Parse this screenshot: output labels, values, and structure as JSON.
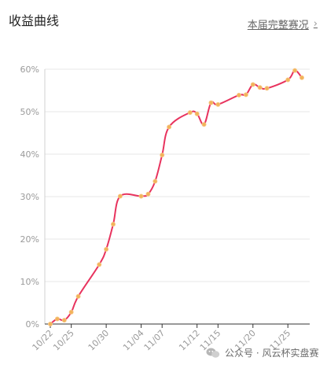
{
  "header": {
    "title": "收益曲线",
    "link_label": "本届完整赛况",
    "chevron_icon": "chevron-right-icon"
  },
  "colors": {
    "line": "#e8335e",
    "point": "#f2b35b",
    "grid": "#e7e7e7",
    "axis_text": "#9a9a9a"
  },
  "chart_data": {
    "type": "line",
    "title": "",
    "xlabel": "",
    "ylabel": "",
    "ylim": [
      0,
      60
    ],
    "yticks": [
      "0%",
      "10%",
      "20%",
      "30%",
      "40%",
      "50%",
      "60%"
    ],
    "xticks": [
      "10/22",
      "10/25",
      "10/30",
      "11/04",
      "11/07",
      "11/12",
      "11/15",
      "11/20",
      "11/25"
    ],
    "x": [
      "10/22",
      "10/23",
      "10/24",
      "10/25",
      "10/26",
      "10/29",
      "10/30",
      "10/31",
      "11/01",
      "11/04",
      "11/05",
      "11/06",
      "11/07",
      "11/08",
      "11/11",
      "11/12",
      "11/13",
      "11/14",
      "11/15",
      "11/18",
      "11/19",
      "11/20",
      "11/21",
      "11/22",
      "11/25",
      "11/26",
      "11/27"
    ],
    "series": [
      {
        "name": "",
        "values": [
          0.0,
          1.2,
          0.9,
          2.8,
          6.5,
          14.0,
          17.6,
          23.5,
          30.1,
          30.1,
          30.6,
          33.6,
          39.8,
          46.4,
          49.8,
          49.5,
          47.0,
          52.1,
          51.7,
          53.9,
          54.0,
          56.4,
          55.7,
          55.5,
          57.5,
          59.7,
          58.0
        ]
      }
    ]
  },
  "watermark": {
    "text": "公众号 · 风云杯实盘赛",
    "icon": "wechat-icon"
  }
}
